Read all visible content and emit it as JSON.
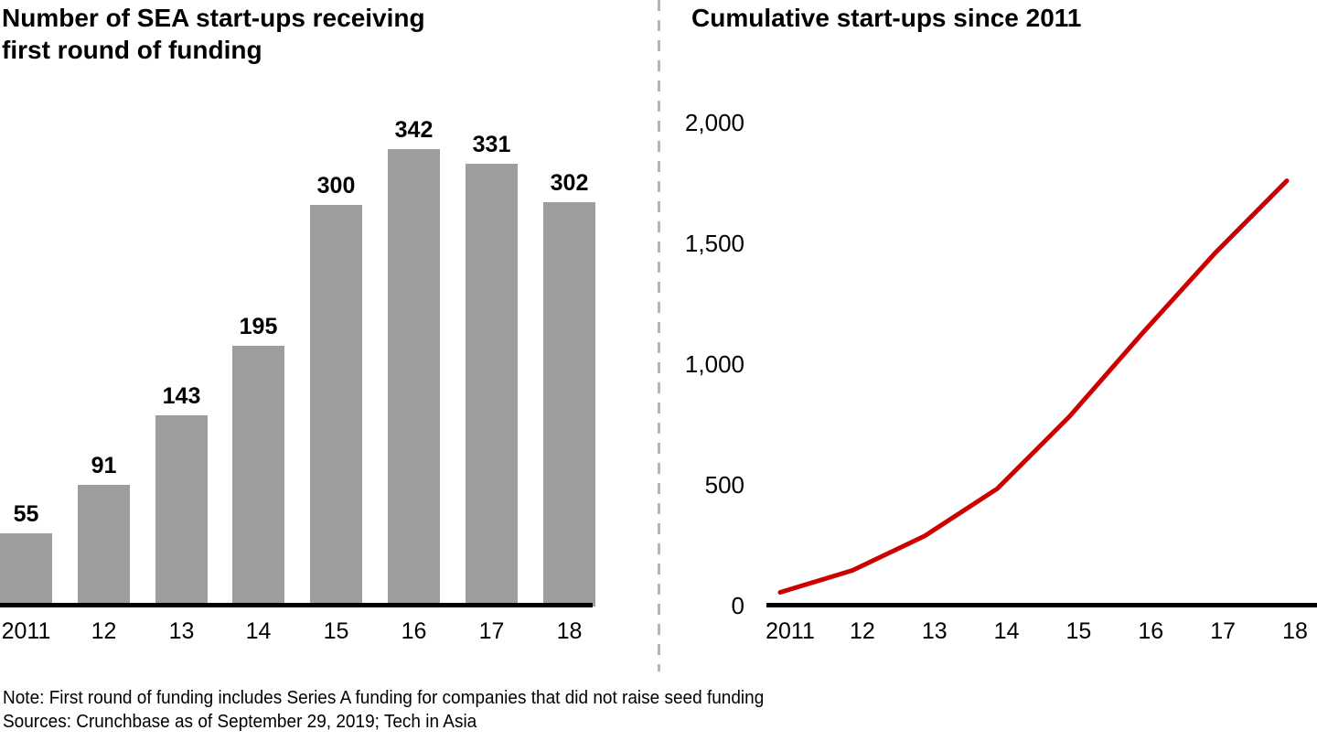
{
  "page": {
    "background": "#ffffff"
  },
  "left_chart": {
    "title_line1": "Number of SEA start-ups receiving",
    "title_line2": "first round of funding"
  },
  "right_chart": {
    "title": "Cumulative start-ups since 2011"
  },
  "footer": {
    "note": "Note: First round of funding includes Series A funding for companies that did not raise seed funding",
    "sources": "Sources: Crunchbase as of September 29, 2019; Tech in Asia"
  },
  "divider": {
    "color": "#b4b4b4"
  },
  "chart_data": [
    {
      "type": "bar",
      "title": "Number of SEA start-ups receiving first round of funding",
      "categories": [
        "2011",
        "12",
        "13",
        "14",
        "15",
        "16",
        "17",
        "18"
      ],
      "values": [
        55,
        91,
        143,
        195,
        300,
        342,
        331,
        302
      ],
      "data_labels": [
        55,
        91,
        143,
        195,
        300,
        342,
        331,
        302
      ],
      "bar_color": "#9d9d9d",
      "axis_color": "#000000",
      "ylim": [
        0,
        345
      ],
      "grid": false,
      "legend": "none",
      "xlabel": "",
      "ylabel": ""
    },
    {
      "type": "line",
      "title": "Cumulative start-ups since 2011",
      "categories": [
        "2011",
        "12",
        "13",
        "14",
        "15",
        "16",
        "17",
        "18"
      ],
      "values": [
        55,
        146,
        289,
        484,
        784,
        1126,
        1457,
        1759
      ],
      "yticks": [
        0,
        500,
        1000,
        1500,
        2000
      ],
      "ytick_labels": [
        "0",
        "500",
        "1,000",
        "1,500",
        "2,000"
      ],
      "ylim": [
        0,
        2100
      ],
      "line_color": "#cc0000",
      "axis_color": "#000000",
      "grid": false,
      "legend": "none",
      "xlabel": "",
      "ylabel": ""
    }
  ]
}
